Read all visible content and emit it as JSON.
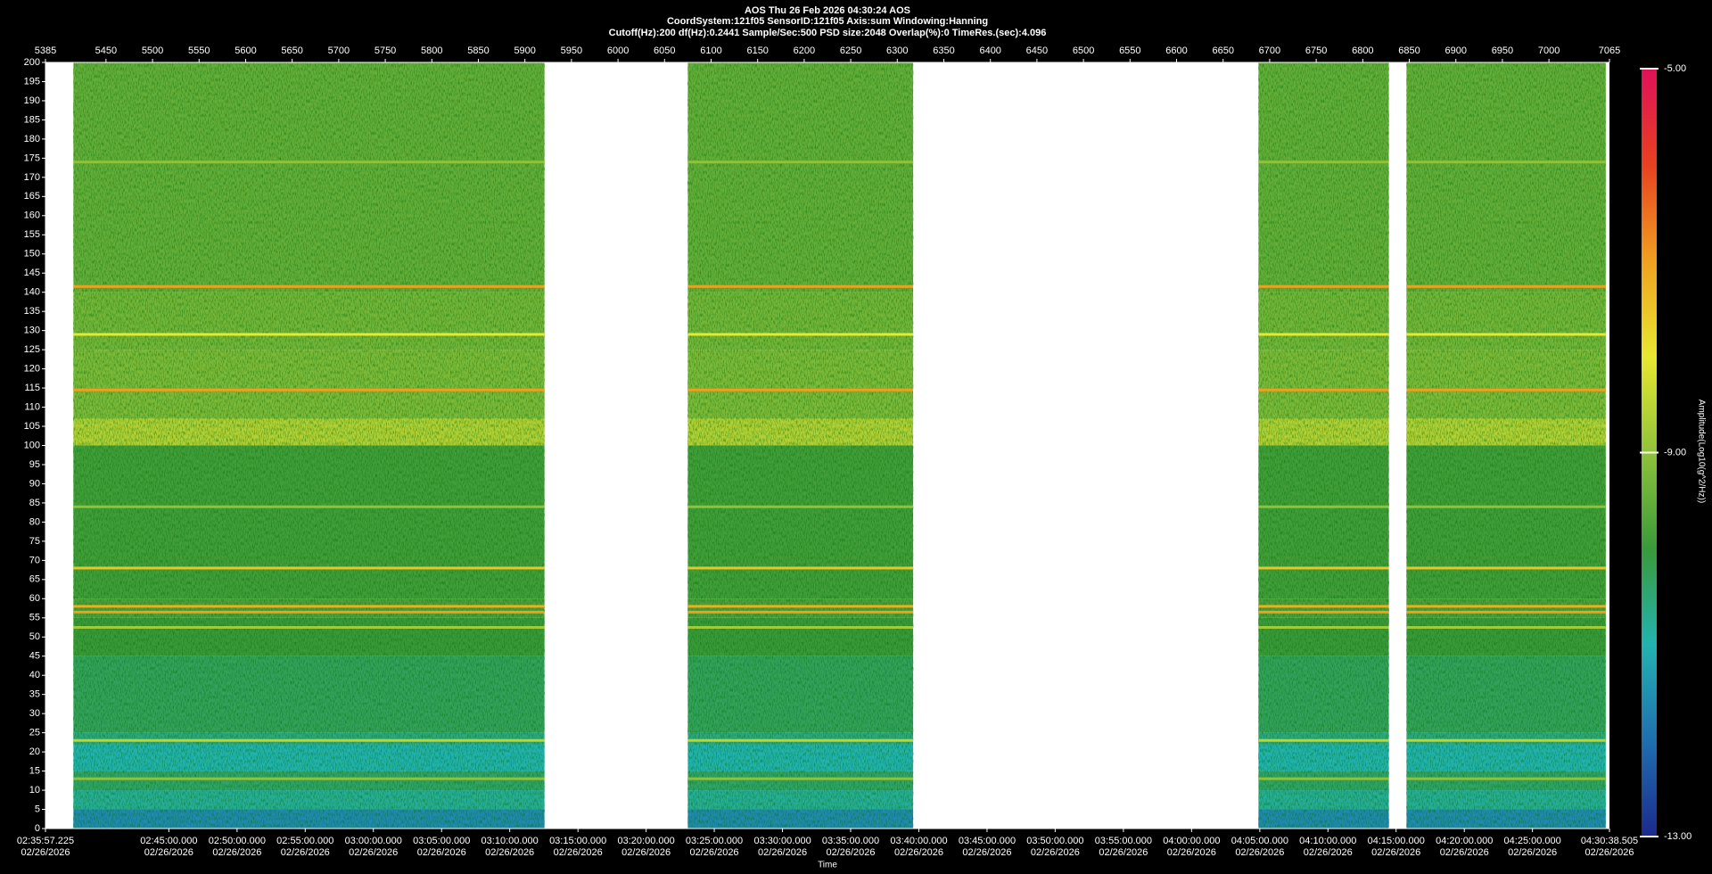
{
  "chart_data": {
    "type": "spectrogram",
    "title": "AOS  Thu 26 Feb 2026 04:30:24  AOS",
    "subtitle": "CoordSystem:121f05   SensorID:121f05    Axis:sum    Windowing:Hanning",
    "subtitle2": "Cutoff(Hz):200    df(Hz):0.2441    Sample/Sec:500    PSD size:2048    Overlap(%):0    TimeRes.(sec):4.096",
    "xlabel": "Time",
    "colorbar_label": "Amplitude(Log10(g^2/Hz))",
    "xlim": [
      5385,
      7065
    ],
    "xticks": [
      5385,
      5450,
      5500,
      5550,
      5600,
      5650,
      5700,
      5750,
      5800,
      5850,
      5900,
      5950,
      6000,
      6050,
      6100,
      6150,
      6200,
      6250,
      6300,
      6350,
      6400,
      6450,
      6500,
      6550,
      6600,
      6650,
      6700,
      6750,
      6800,
      6850,
      6900,
      6950,
      7000,
      7065
    ],
    "time_ticks": [
      {
        "value": 5385,
        "label": "02:35:57.225",
        "date": "02/26/2026"
      },
      {
        "value": 5517.5,
        "label": "02:45:00.000",
        "date": "02/26/2026"
      },
      {
        "value": 5590.8,
        "label": "02:50:00.000",
        "date": "02/26/2026"
      },
      {
        "value": 5664.0,
        "label": "02:55:00.000",
        "date": "02/26/2026"
      },
      {
        "value": 5737.2,
        "label": "03:00:00.000",
        "date": "02/26/2026"
      },
      {
        "value": 5810.5,
        "label": "03:05:00.000",
        "date": "02/26/2026"
      },
      {
        "value": 5883.7,
        "label": "03:10:00.000",
        "date": "02/26/2026"
      },
      {
        "value": 5957.0,
        "label": "03:15:00.000",
        "date": "02/26/2026"
      },
      {
        "value": 6030.2,
        "label": "03:20:00.000",
        "date": "02/26/2026"
      },
      {
        "value": 6103.4,
        "label": "03:25:00.000",
        "date": "02/26/2026"
      },
      {
        "value": 6176.7,
        "label": "03:30:00.000",
        "date": "02/26/2026"
      },
      {
        "value": 6249.9,
        "label": "03:35:00.000",
        "date": "02/26/2026"
      },
      {
        "value": 6323.2,
        "label": "03:40:00.000",
        "date": "02/26/2026"
      },
      {
        "value": 6396.4,
        "label": "03:45:00.000",
        "date": "02/26/2026"
      },
      {
        "value": 6469.6,
        "label": "03:50:00.000",
        "date": "02/26/2026"
      },
      {
        "value": 6542.9,
        "label": "03:55:00.000",
        "date": "02/26/2026"
      },
      {
        "value": 6616.1,
        "label": "04:00:00.000",
        "date": "02/26/2026"
      },
      {
        "value": 6689.4,
        "label": "04:05:00.000",
        "date": "02/26/2026"
      },
      {
        "value": 6762.6,
        "label": "04:10:00.000",
        "date": "02/26/2026"
      },
      {
        "value": 6835.8,
        "label": "04:15:00.000",
        "date": "02/26/2026"
      },
      {
        "value": 6909.1,
        "label": "04:20:00.000",
        "date": "02/26/2026"
      },
      {
        "value": 6982.3,
        "label": "04:25:00.000",
        "date": "02/26/2026"
      },
      {
        "value": 7065,
        "label": "04:30:38.505",
        "date": "02/26/2026"
      }
    ],
    "ylim": [
      0,
      200
    ],
    "yticks": [
      0,
      5,
      10,
      15,
      20,
      25,
      30,
      35,
      40,
      45,
      50,
      55,
      60,
      65,
      70,
      75,
      80,
      85,
      90,
      95,
      100,
      105,
      110,
      115,
      120,
      125,
      130,
      135,
      140,
      145,
      150,
      155,
      160,
      165,
      170,
      175,
      180,
      185,
      190,
      195,
      200
    ],
    "segments": {
      "start": [
        5415,
        6075,
        6688,
        6847
      ],
      "end": [
        5921,
        6317,
        6828,
        7061
      ]
    },
    "bands": {
      "low": [
        0,
        5,
        10,
        15,
        22,
        25,
        45,
        55,
        60,
        100,
        107,
        125,
        140
      ],
      "high": [
        5,
        10,
        15,
        22,
        25,
        45,
        55,
        60,
        100,
        107,
        125,
        140,
        200
      ],
      "values": [
        -11.6,
        -10.8,
        -10.4,
        -11.0,
        -10.6,
        -10.3,
        -10.0,
        -9.8,
        -9.9,
        -8.6,
        -9.2,
        -9.3,
        -9.5
      ]
    },
    "lines": {
      "freq": [
        13,
        23,
        52.5,
        56.5,
        58,
        68,
        84,
        114.5,
        129,
        141.5,
        174
      ],
      "values": [
        -9.0,
        -8.5,
        -8.8,
        -7.0,
        -7.2,
        -7.5,
        -9.0,
        -7.0,
        -8.0,
        -7.0,
        -9.0
      ]
    },
    "colorbar_lim": [
      -13,
      -5
    ],
    "colorbar_ticks": [
      {
        "value": -13,
        "label": "-13.00"
      },
      {
        "value": -9,
        "label": "-9.00"
      },
      {
        "value": -5,
        "label": "-5.00"
      }
    ],
    "colorscale": [
      "#1c2a8c",
      "#1f6fb0",
      "#22b3b0",
      "#3a9a3a",
      "#8fc23a",
      "#e8e830",
      "#f0a020",
      "#e84020",
      "#e0105a"
    ]
  }
}
